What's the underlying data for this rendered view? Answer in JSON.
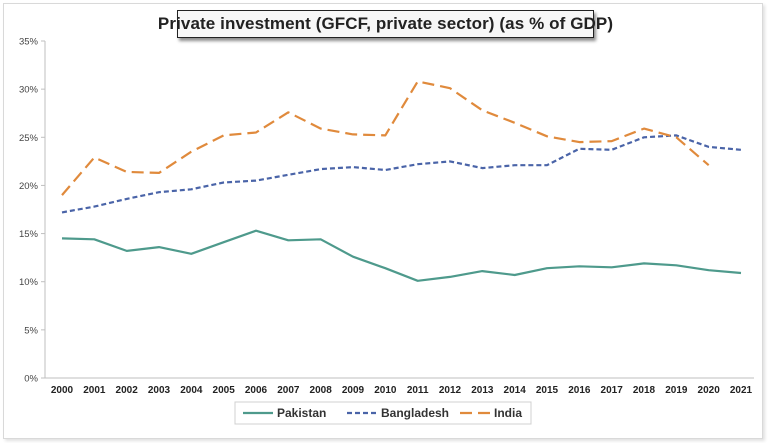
{
  "chart_data": {
    "type": "line",
    "title": "Private investment (GFCF, private sector) (as % of GDP)",
    "xlabel": "",
    "ylabel": "",
    "ylim": [
      0,
      35
    ],
    "y_ticks": [
      "0%",
      "5%",
      "10%",
      "15%",
      "20%",
      "25%",
      "30%",
      "35%"
    ],
    "y_tick_values": [
      0,
      5,
      10,
      15,
      20,
      25,
      30,
      35
    ],
    "grid": false,
    "legend_position": "bottom",
    "x": [
      "2000",
      "2001",
      "2002",
      "2003",
      "2004",
      "2005",
      "2006",
      "2007",
      "2008",
      "2009",
      "2010",
      "2011",
      "2012",
      "2013",
      "2014",
      "2015",
      "2016",
      "2017",
      "2018",
      "2019",
      "2020",
      "2021"
    ],
    "series": [
      {
        "name": "Pakistan",
        "color": "#4e9a8c",
        "style": "solid",
        "values": [
          14.5,
          14.4,
          13.2,
          13.6,
          12.9,
          14.1,
          15.3,
          14.3,
          14.4,
          12.6,
          11.4,
          10.1,
          10.5,
          11.1,
          10.7,
          11.4,
          11.6,
          11.5,
          11.9,
          11.7,
          11.2,
          10.9
        ]
      },
      {
        "name": "Bangladesh",
        "color": "#4a64a8",
        "style": "short-dash",
        "values": [
          17.2,
          17.8,
          18.6,
          19.3,
          19.6,
          20.3,
          20.5,
          21.1,
          21.7,
          21.9,
          21.6,
          22.2,
          22.5,
          21.8,
          22.1,
          22.1,
          23.8,
          23.7,
          25.0,
          25.2,
          24.0,
          23.7
        ]
      },
      {
        "name": "India",
        "color": "#e08a3c",
        "style": "long-dash",
        "values": [
          19.0,
          22.9,
          21.4,
          21.3,
          23.5,
          25.2,
          25.5,
          27.6,
          25.9,
          25.3,
          25.2,
          30.8,
          30.1,
          27.8,
          26.5,
          25.1,
          24.5,
          24.6,
          25.9,
          25.0,
          22.1,
          null
        ]
      }
    ]
  },
  "legend": {
    "items": [
      {
        "label": "Pakistan"
      },
      {
        "label": "Bangladesh"
      },
      {
        "label": "India"
      }
    ]
  }
}
